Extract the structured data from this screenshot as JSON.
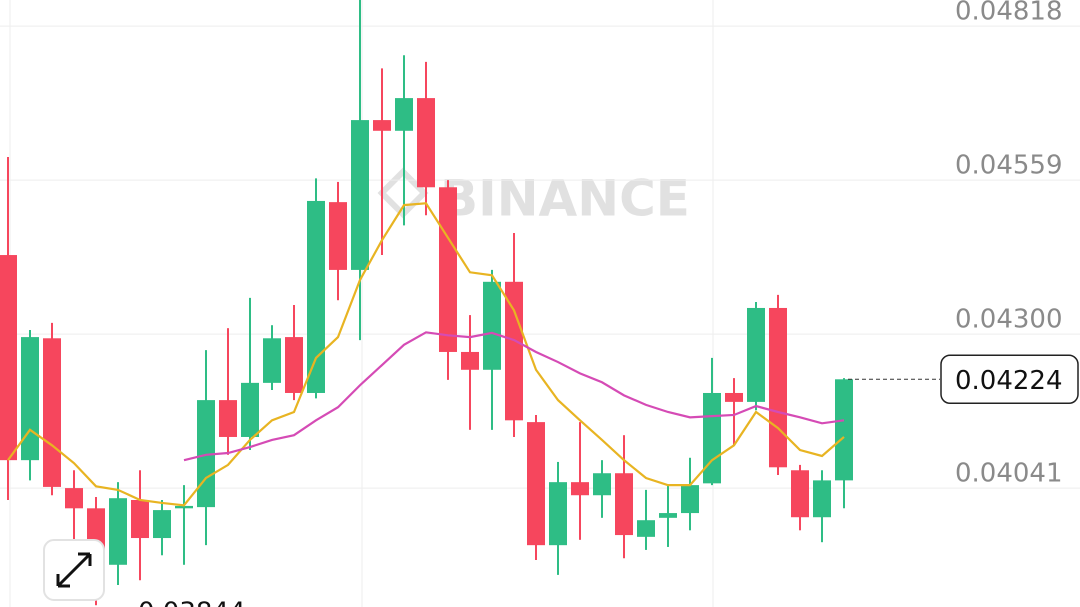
{
  "chart_data": {
    "type": "candlestick",
    "watermark": "BINANCE",
    "up_color": "#2ebd85",
    "down_color": "#f6465d",
    "ylim": [
      0.03841,
      0.04862
    ],
    "yticks": [
      0.04041,
      {
        "value": 0.043,
        "label": "0.04300"
      },
      0.04559,
      0.04818
    ],
    "grid": true,
    "open": [
      0.04433,
      0.04088,
      0.04293,
      0.04041,
      0.04007,
      0.03912,
      0.04021,
      0.03957,
      0.04007,
      0.04009,
      0.04189,
      0.04127,
      0.04218,
      0.04295,
      0.04201,
      0.04522,
      0.04408,
      0.0466,
      0.04642,
      0.04697,
      0.04547,
      0.0427,
      0.0424,
      0.04388,
      0.04152,
      0.03945,
      0.04051,
      0.04029,
      0.04066,
      0.03959,
      0.03991,
      0.03999,
      0.04049,
      0.04201,
      0.04186,
      0.04344,
      0.04071,
      0.03992,
      0.04054
    ],
    "high": [
      0.04598,
      0.04307,
      0.04319,
      0.04071,
      0.04026,
      0.04051,
      0.04071,
      0.04021,
      0.04046,
      0.04273,
      0.0431,
      0.04361,
      0.04315,
      0.04349,
      0.04562,
      0.04556,
      0.04862,
      0.04747,
      0.04769,
      0.04758,
      0.04559,
      0.04332,
      0.04408,
      0.0447,
      0.04164,
      0.04085,
      0.04152,
      0.04088,
      0.0413,
      0.04038,
      0.04046,
      0.04092,
      0.0426,
      0.04226,
      0.04354,
      0.04366,
      0.0408,
      0.04071,
      0.04226
    ],
    "low": [
      0.04021,
      0.04054,
      0.04029,
      0.03954,
      0.03844,
      0.03878,
      0.03886,
      0.03928,
      0.03912,
      0.03945,
      0.04097,
      0.04105,
      0.04206,
      0.04189,
      0.04192,
      0.04357,
      0.0429,
      0.04433,
      0.04483,
      0.045,
      0.04223,
      0.04139,
      0.04139,
      0.04127,
      0.0392,
      0.03895,
      0.03954,
      0.03991,
      0.03923,
      0.03937,
      0.03942,
      0.0397,
      0.04046,
      0.04113,
      0.04172,
      0.04063,
      0.0397,
      0.0395,
      0.04007
    ],
    "close": [
      0.04088,
      0.04295,
      0.04043,
      0.04007,
      0.03912,
      0.04024,
      0.03957,
      0.04004,
      0.04011,
      0.04189,
      0.04127,
      0.04218,
      0.04293,
      0.04201,
      0.04524,
      0.04408,
      0.0466,
      0.04642,
      0.04697,
      0.04547,
      0.0427,
      0.0424,
      0.04388,
      0.04155,
      0.03945,
      0.04051,
      0.04029,
      0.04066,
      0.03962,
      0.03987,
      0.03999,
      0.04046,
      0.04201,
      0.04186,
      0.04344,
      0.04076,
      0.03992,
      0.04054,
      0.04224
    ],
    "series": [
      {
        "color": "#e8b422",
        "values": [
          0.04088,
          0.04139,
          0.04113,
          0.04083,
          0.04044,
          0.04038,
          0.04021,
          0.04016,
          0.04012,
          0.04058,
          0.0408,
          0.04122,
          0.04155,
          0.04169,
          0.0426,
          0.04295,
          0.04391,
          0.04458,
          0.04517,
          0.0452,
          0.04462,
          0.04404,
          0.04399,
          0.0434,
          0.0424,
          0.04189,
          0.04155,
          0.04122,
          0.04088,
          0.04058,
          0.04046,
          0.04046,
          0.04088,
          0.04113,
          0.04169,
          0.04142,
          0.04105,
          0.04095,
          0.04127
        ]
      },
      {
        "color": "#d54bb5",
        "values": [
          null,
          null,
          null,
          null,
          null,
          null,
          null,
          null,
          0.04088,
          0.04097,
          0.041,
          0.0411,
          0.04122,
          0.0413,
          0.04155,
          0.04177,
          0.04214,
          0.04248,
          0.04282,
          0.04303,
          0.04298,
          0.04295,
          0.04302,
          0.0429,
          0.0427,
          0.04253,
          0.04234,
          0.04219,
          0.04197,
          0.04181,
          0.04169,
          0.0416,
          0.04162,
          0.04164,
          0.04179,
          0.04169,
          0.0416,
          0.0415,
          0.04155
        ]
      }
    ]
  }
}
